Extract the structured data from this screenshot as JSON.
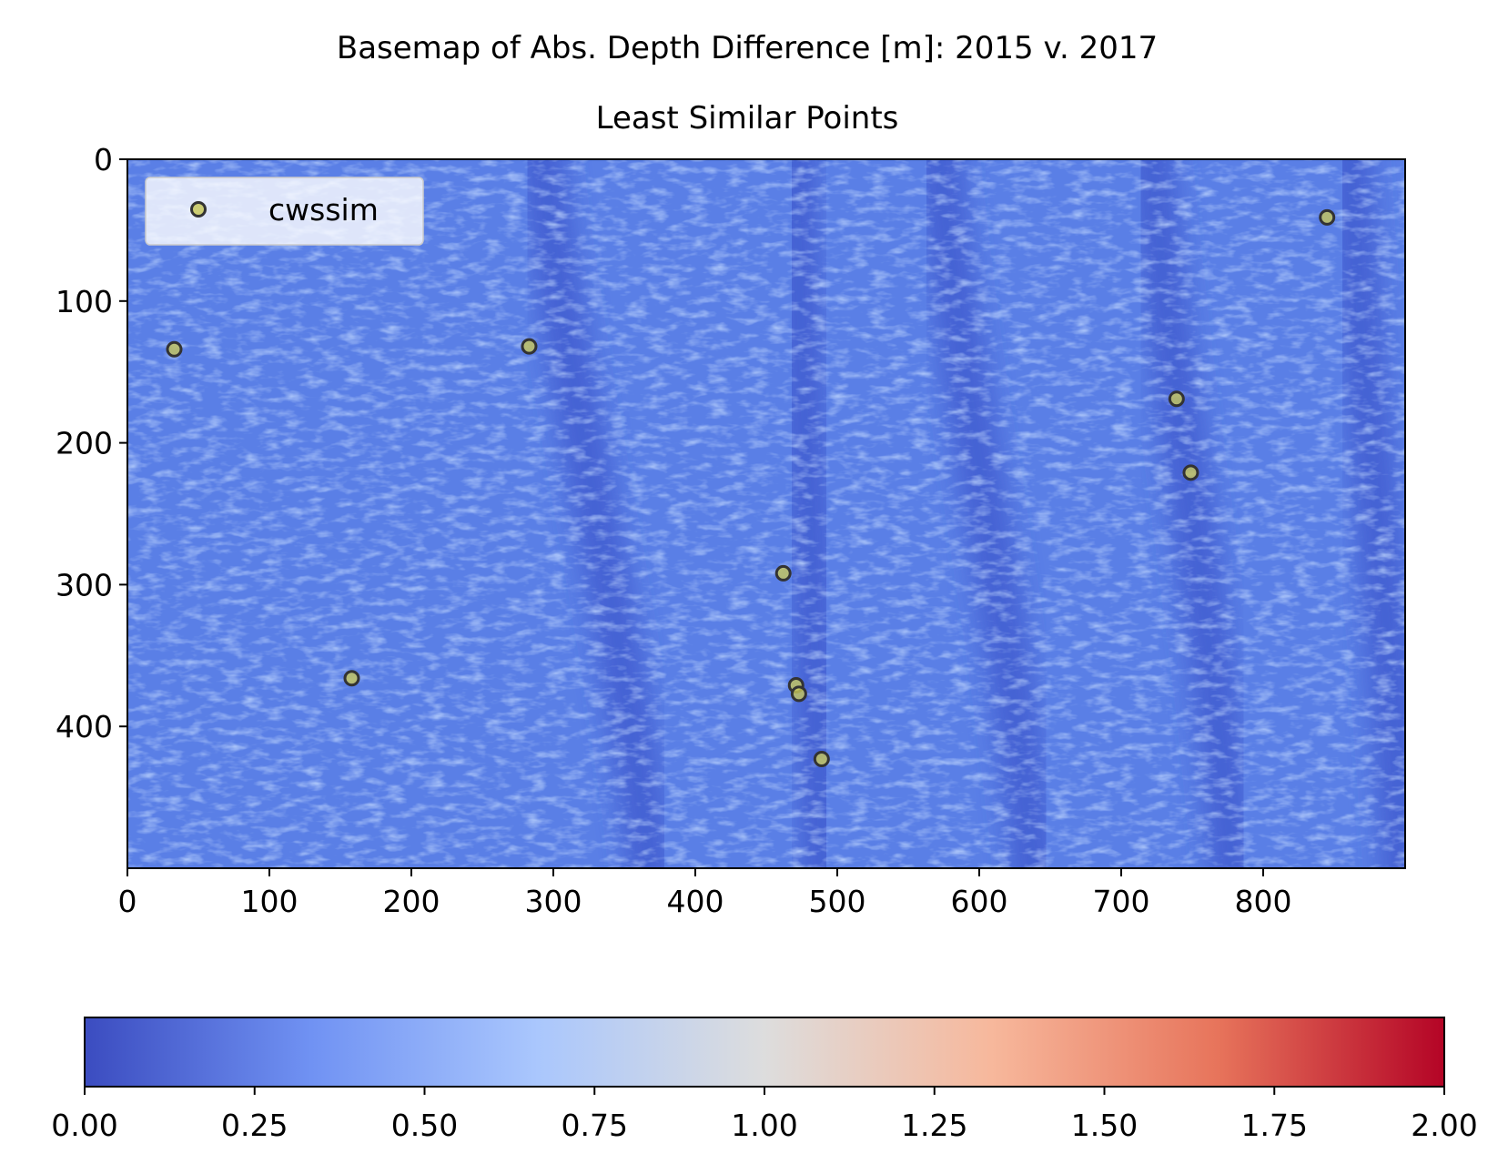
{
  "chart_data": {
    "type": "heatmap",
    "title": "Basemap of Abs. Depth Difference [m]: 2015 v. 2017",
    "subtitle": "Least Similar Points",
    "xlabel": "",
    "ylabel": "",
    "xlim": [
      0,
      900
    ],
    "ylim": [
      500,
      0
    ],
    "x_ticks": [
      0,
      100,
      200,
      300,
      400,
      500,
      600,
      700,
      800
    ],
    "y_ticks": [
      0,
      100,
      200,
      300,
      400
    ],
    "grid": false,
    "legend": {
      "placement": "upper-left",
      "entries": [
        "cwssim"
      ]
    },
    "series": [
      {
        "name": "cwssim",
        "type": "scatter",
        "color": "#c8c85a",
        "edgecolor": "#333333",
        "points": [
          {
            "x": 33,
            "y": 134
          },
          {
            "x": 283,
            "y": 132
          },
          {
            "x": 158,
            "y": 366
          },
          {
            "x": 462,
            "y": 292
          },
          {
            "x": 471,
            "y": 371
          },
          {
            "x": 473,
            "y": 377
          },
          {
            "x": 489,
            "y": 423
          },
          {
            "x": 739,
            "y": 169
          },
          {
            "x": 749,
            "y": 221
          },
          {
            "x": 845,
            "y": 41
          }
        ]
      }
    ],
    "colorbar": {
      "colormap": "coolwarm",
      "range": [
        0,
        2
      ],
      "ticks": [
        "0.00",
        "0.25",
        "0.50",
        "0.75",
        "1.00",
        "1.25",
        "1.50",
        "1.75",
        "2.00"
      ],
      "colors": [
        "#3b4cc0",
        "#7092f3",
        "#aac7fd",
        "#dddddd",
        "#f7b89c",
        "#e7745b",
        "#b40426"
      ]
    },
    "basemap": {
      "base_color": "#5a7fe6",
      "dark_band_color": "#3d55cc",
      "light_texture_color": "#8fb0ff",
      "dark_bands_x_at_top": [
        290,
        470,
        570,
        720,
        860
      ],
      "dark_bands_x_at_bottom": [
        370,
        490,
        640,
        780,
        900
      ]
    }
  }
}
